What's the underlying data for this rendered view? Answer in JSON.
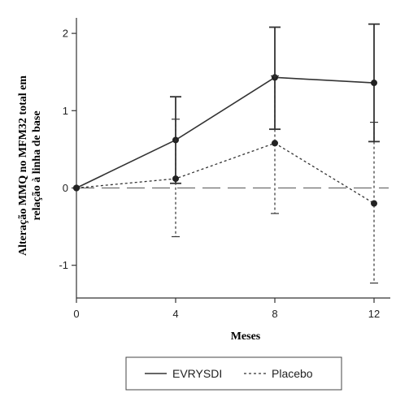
{
  "chart_data": {
    "type": "line",
    "xlabel": "Meses",
    "ylabel_lines": [
      "Alteração MMQ no MFM32 total em",
      "relação à linha de base"
    ],
    "x": [
      0,
      4,
      8,
      12
    ],
    "xticks": [
      "0",
      "4",
      "8",
      "12"
    ],
    "yticks": [
      "-1",
      "0",
      "1",
      "2"
    ],
    "xlim": [
      0,
      13
    ],
    "ylim": [
      -1.4,
      2.2
    ],
    "baseline": 0,
    "series": [
      {
        "name": "EVRYSDI",
        "style": "solid",
        "color": "#333333",
        "values": [
          0,
          0.62,
          1.43,
          1.36
        ],
        "err_low": [
          0,
          0.06,
          0.76,
          0.6
        ],
        "err_high": [
          0,
          1.18,
          2.08,
          2.12
        ]
      },
      {
        "name": "Placebo",
        "style": "dashed",
        "color": "#333333",
        "values": [
          0,
          0.12,
          0.58,
          -0.2
        ],
        "err_low": [
          0,
          -0.63,
          -0.33,
          -1.23
        ],
        "err_high": [
          0,
          0.89,
          1.45,
          0.85
        ]
      }
    ],
    "legend_position": "bottom"
  }
}
